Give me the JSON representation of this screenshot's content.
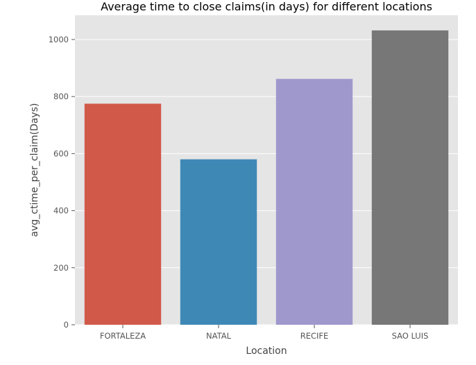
{
  "chart_data": {
    "type": "bar",
    "title": "Average time to close claims(in days) for different locations",
    "xlabel": "Location",
    "ylabel": "avg_ctime_per_claim(Days)",
    "categories": [
      "FORTALEZA",
      "NATAL",
      "RECIFE",
      "SAO LUIS"
    ],
    "values": [
      775,
      580,
      862,
      1032
    ],
    "colors": [
      "#d1594a",
      "#3e88b6",
      "#9e98cd",
      "#777777"
    ],
    "ylim": [
      0,
      1085
    ],
    "yticks": [
      0,
      200,
      400,
      600,
      800,
      1000
    ],
    "grid": true,
    "legend": "none",
    "plot_background": "#e5e5e5",
    "grid_color": "#ffffff"
  }
}
